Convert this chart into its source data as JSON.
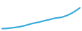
{
  "values": [
    3654.0,
    3660.0,
    3672.0,
    3685.0,
    3700.0,
    3718.0,
    3740.0,
    3768.0,
    3800.0,
    3840.0,
    3870.0,
    3895.0,
    3920.0,
    3955.0,
    3985.0,
    4010.0,
    4045.0,
    4075.0,
    4090.0,
    4110.0,
    4145.0,
    4190.0,
    4250.0,
    4320.0,
    4400.0,
    4490.0
  ],
  "line_color": "#3aabdc",
  "background_color": "#ffffff",
  "linewidth": 1.6
}
